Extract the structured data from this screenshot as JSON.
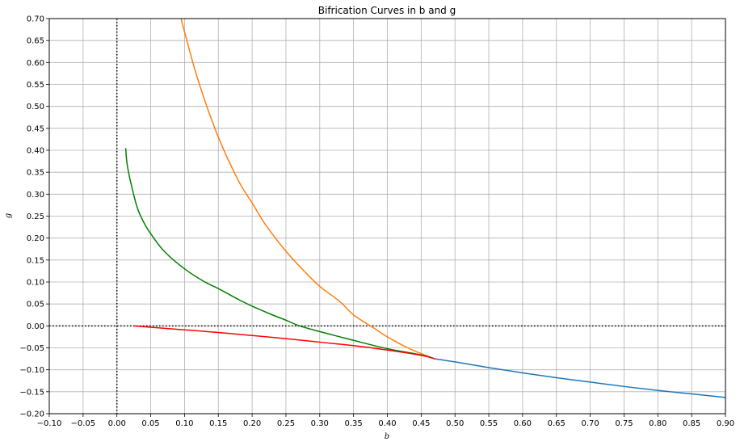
{
  "chart_data": {
    "type": "line",
    "title": "Bifrication Curves in b and g",
    "xlabel": "b",
    "ylabel": "g",
    "xlim": [
      -0.1,
      0.9
    ],
    "ylim": [
      -0.2,
      0.7
    ],
    "xticks": [
      -0.1,
      -0.05,
      0.0,
      0.05,
      0.1,
      0.15,
      0.2,
      0.25,
      0.3,
      0.35,
      0.4,
      0.45,
      0.5,
      0.55,
      0.6,
      0.65,
      0.7,
      0.75,
      0.8,
      0.85,
      0.9
    ],
    "yticks": [
      -0.2,
      -0.15,
      -0.1,
      -0.05,
      0.0,
      0.05,
      0.1,
      0.15,
      0.2,
      0.25,
      0.3,
      0.35,
      0.4,
      0.45,
      0.5,
      0.55,
      0.6,
      0.65,
      0.7
    ],
    "grid": true,
    "reference_lines": [
      {
        "orientation": "horizontal",
        "value": 0.0,
        "style": "dotted",
        "color": "#000000"
      },
      {
        "orientation": "vertical",
        "value": 0.0,
        "style": "dotted",
        "color": "#000000"
      }
    ],
    "series": [
      {
        "color": "#1f77b4",
        "x": [
          0.47,
          0.5,
          0.55,
          0.6,
          0.65,
          0.7,
          0.75,
          0.8,
          0.85,
          0.9
        ],
        "y": [
          -0.075,
          -0.082,
          -0.095,
          -0.107,
          -0.118,
          -0.128,
          -0.138,
          -0.147,
          -0.155,
          -0.163
        ]
      },
      {
        "color": "#ff7f0e",
        "x": [
          0.095,
          0.1,
          0.12,
          0.15,
          0.18,
          0.2,
          0.22,
          0.25,
          0.28,
          0.3,
          0.33,
          0.35,
          0.38,
          0.4,
          0.43,
          0.45,
          0.47
        ],
        "y": [
          0.7,
          0.67,
          0.56,
          0.43,
          0.33,
          0.28,
          0.23,
          0.17,
          0.12,
          0.09,
          0.055,
          0.025,
          -0.005,
          -0.025,
          -0.05,
          -0.063,
          -0.075
        ]
      },
      {
        "color": "#008000",
        "x": [
          0.013,
          0.015,
          0.02,
          0.03,
          0.04,
          0.05,
          0.07,
          0.1,
          0.13,
          0.15,
          0.18,
          0.2,
          0.23,
          0.25,
          0.27,
          0.3,
          0.33,
          0.35,
          0.4,
          0.45,
          0.47
        ],
        "y": [
          0.405,
          0.37,
          0.33,
          0.27,
          0.235,
          0.21,
          0.17,
          0.13,
          0.1,
          0.085,
          0.06,
          0.045,
          0.025,
          0.013,
          0.0,
          -0.013,
          -0.025,
          -0.033,
          -0.052,
          -0.066,
          -0.075
        ]
      },
      {
        "color": "#ff0000",
        "x": [
          0.025,
          0.05,
          0.1,
          0.15,
          0.2,
          0.25,
          0.3,
          0.35,
          0.4,
          0.45,
          0.47
        ],
        "y": [
          0.0,
          -0.003,
          -0.009,
          -0.015,
          -0.022,
          -0.029,
          -0.037,
          -0.045,
          -0.055,
          -0.067,
          -0.075
        ]
      }
    ]
  }
}
